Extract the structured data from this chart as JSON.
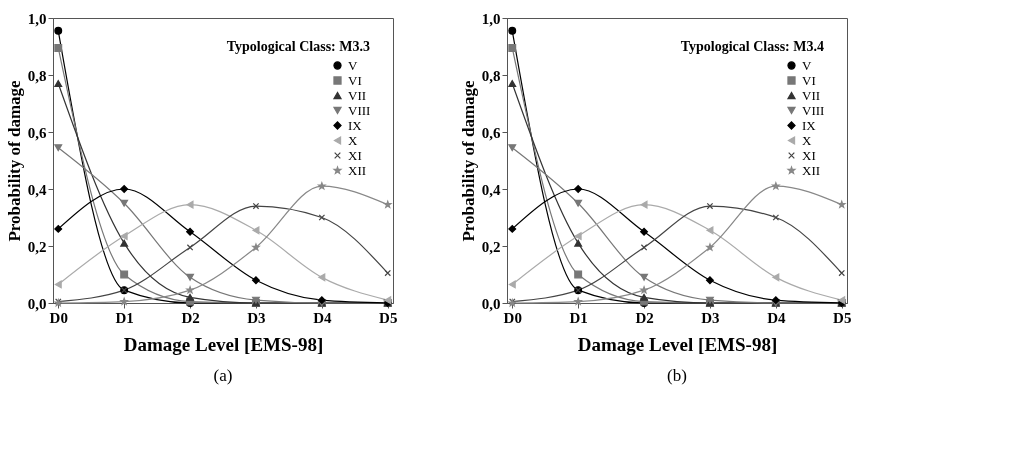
{
  "chart_data": [
    {
      "type": "line",
      "legend_title": "Typological Class: M3.3",
      "xlabel": "Damage Level [EMS-98]",
      "ylabel": "Probability of damage",
      "annotations": [
        "(a)"
      ],
      "categories": [
        "D0",
        "D1",
        "D2",
        "D3",
        "D4",
        "D5"
      ],
      "ylim": [
        0,
        1
      ],
      "yticks": [
        {
          "value": 0,
          "label": "0,0"
        },
        {
          "value": 0.2,
          "label": "0,2"
        },
        {
          "value": 0.4,
          "label": "0,4"
        },
        {
          "value": 0.6,
          "label": "0,6"
        },
        {
          "value": 0.8,
          "label": "0,8"
        },
        {
          "value": 1,
          "label": "1,0"
        }
      ],
      "legend": "top right",
      "grid": false,
      "series": [
        {
          "name": "V",
          "color": "#000000",
          "marker": "circle",
          "values": [
            0.955,
            0.045,
            0,
            0,
            0,
            0
          ]
        },
        {
          "name": "VI",
          "color": "#777777",
          "marker": "square",
          "values": [
            0.895,
            0.1,
            0.005,
            0,
            0,
            0
          ]
        },
        {
          "name": "VII",
          "color": "#333333",
          "marker": "triangle",
          "values": [
            0.77,
            0.21,
            0.02,
            0,
            0,
            0
          ]
        },
        {
          "name": "VIII",
          "color": "#777777",
          "marker": "triangle-down",
          "values": [
            0.545,
            0.35,
            0.09,
            0.01,
            0,
            0
          ]
        },
        {
          "name": "IX",
          "color": "#000000",
          "marker": "diamond",
          "values": [
            0.26,
            0.4,
            0.25,
            0.08,
            0.01,
            0
          ]
        },
        {
          "name": "X",
          "color": "#aaaaaa",
          "marker": "triangle-left",
          "values": [
            0.065,
            0.235,
            0.345,
            0.255,
            0.09,
            0.01
          ]
        },
        {
          "name": "XI",
          "color": "#444444",
          "marker": "cross",
          "values": [
            0.005,
            0.045,
            0.195,
            0.34,
            0.3,
            0.105
          ]
        },
        {
          "name": "XII",
          "color": "#888888",
          "marker": "star",
          "values": [
            0,
            0.005,
            0.045,
            0.195,
            0.41,
            0.345
          ]
        }
      ]
    },
    {
      "type": "line",
      "legend_title": "Typological Class: M3.4",
      "xlabel": "Damage Level [EMS-98]",
      "ylabel": "Probability of damage",
      "annotations": [
        "(b)"
      ],
      "categories": [
        "D0",
        "D1",
        "D2",
        "D3",
        "D4",
        "D5"
      ],
      "ylim": [
        0,
        1
      ],
      "yticks": [
        {
          "value": 0,
          "label": "0,0"
        },
        {
          "value": 0.2,
          "label": "0,2"
        },
        {
          "value": 0.4,
          "label": "0,4"
        },
        {
          "value": 0.6,
          "label": "0,6"
        },
        {
          "value": 0.8,
          "label": "0,8"
        },
        {
          "value": 1,
          "label": "1,0"
        }
      ],
      "legend": "top right",
      "grid": false,
      "series": [
        {
          "name": "V",
          "color": "#000000",
          "marker": "circle",
          "values": [
            0.955,
            0.045,
            0,
            0,
            0,
            0
          ]
        },
        {
          "name": "VI",
          "color": "#777777",
          "marker": "square",
          "values": [
            0.895,
            0.1,
            0.005,
            0,
            0,
            0
          ]
        },
        {
          "name": "VII",
          "color": "#333333",
          "marker": "triangle",
          "values": [
            0.77,
            0.21,
            0.02,
            0,
            0,
            0
          ]
        },
        {
          "name": "VIII",
          "color": "#777777",
          "marker": "triangle-down",
          "values": [
            0.545,
            0.35,
            0.09,
            0.01,
            0,
            0
          ]
        },
        {
          "name": "IX",
          "color": "#000000",
          "marker": "diamond",
          "values": [
            0.26,
            0.4,
            0.25,
            0.08,
            0.01,
            0
          ]
        },
        {
          "name": "X",
          "color": "#aaaaaa",
          "marker": "triangle-left",
          "values": [
            0.065,
            0.235,
            0.345,
            0.255,
            0.09,
            0.01
          ]
        },
        {
          "name": "XI",
          "color": "#444444",
          "marker": "cross",
          "values": [
            0.005,
            0.045,
            0.195,
            0.34,
            0.3,
            0.105
          ]
        },
        {
          "name": "XII",
          "color": "#888888",
          "marker": "star",
          "values": [
            0,
            0.005,
            0.045,
            0.195,
            0.41,
            0.345
          ]
        }
      ]
    }
  ]
}
